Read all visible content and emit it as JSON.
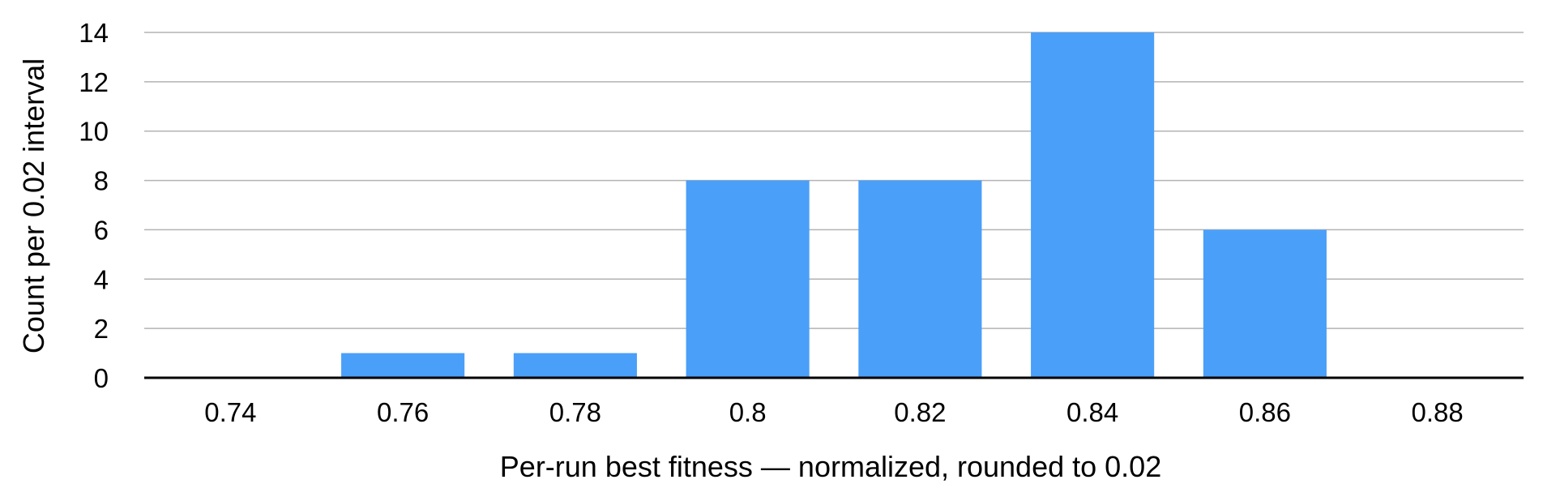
{
  "chart_data": {
    "type": "bar",
    "categories": [
      "0.74",
      "0.76",
      "0.78",
      "0.8",
      "0.82",
      "0.84",
      "0.86",
      "0.88"
    ],
    "series": [
      {
        "values": [
          0,
          1,
          1,
          8,
          8,
          14,
          6,
          0
        ],
        "color": "#4a9ff8"
      }
    ],
    "title": "",
    "xlabel": "Per-run best fitness — normalized, rounded to 0.02",
    "ylabel": "Count per 0.02 interval",
    "ylim": [
      0,
      14
    ],
    "yticks": [
      0,
      2,
      4,
      6,
      8,
      10,
      12,
      14
    ],
    "grid": true,
    "legend": "none"
  }
}
